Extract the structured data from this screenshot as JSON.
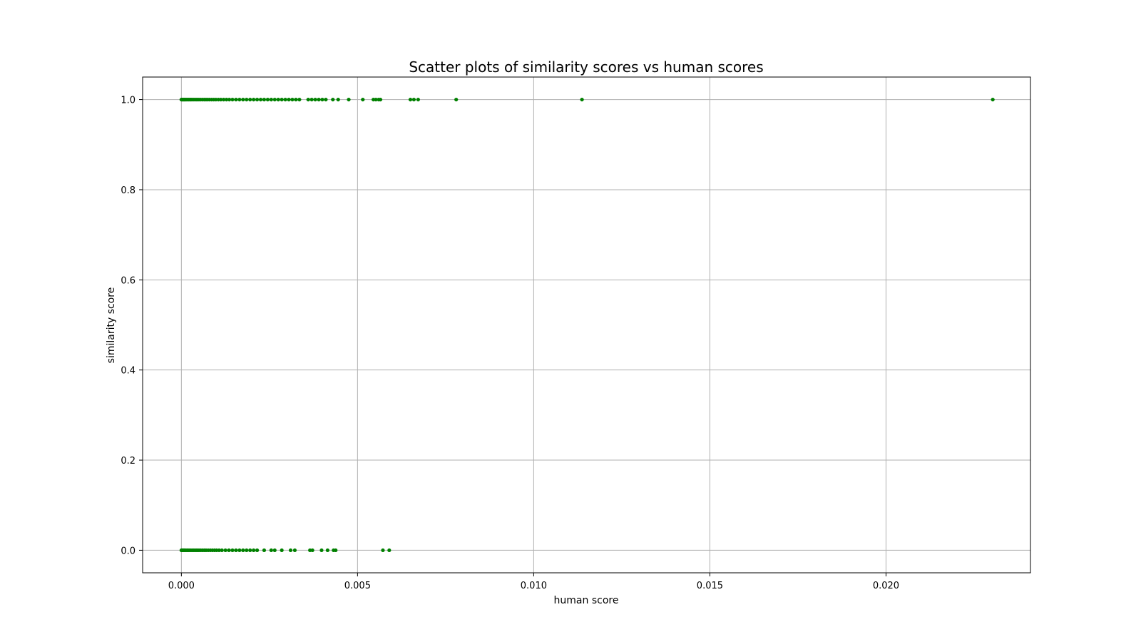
{
  "chart_data": {
    "type": "scatter",
    "title": "Scatter plots of similarity scores vs human scores",
    "xlabel": "human score",
    "ylabel": "similarity score",
    "xlim": [
      -0.0011,
      0.0241
    ],
    "ylim": [
      -0.05,
      1.05
    ],
    "xticks": [
      0.0,
      0.005,
      0.01,
      0.015,
      0.02
    ],
    "xtick_labels": [
      "0.000",
      "0.005",
      "0.010",
      "0.015",
      "0.020"
    ],
    "yticks": [
      0.0,
      0.2,
      0.4,
      0.6,
      0.8,
      1.0
    ],
    "ytick_labels": [
      "0.0",
      "0.2",
      "0.4",
      "0.6",
      "0.8",
      "1.0"
    ],
    "grid": true,
    "marker_color": "#008000",
    "series": [
      {
        "points": [
          [
            0.0,
            1
          ],
          [
            2e-05,
            1
          ],
          [
            4e-05,
            1
          ],
          [
            6e-05,
            1
          ],
          [
            8e-05,
            1
          ],
          [
            0.0001,
            1
          ],
          [
            0.00012,
            1
          ],
          [
            0.00015,
            1
          ],
          [
            0.00018,
            1
          ],
          [
            0.00021,
            1
          ],
          [
            0.00024,
            1
          ],
          [
            0.00027,
            1
          ],
          [
            0.0003,
            1
          ],
          [
            0.00034,
            1
          ],
          [
            0.00038,
            1
          ],
          [
            0.00042,
            1
          ],
          [
            0.00046,
            1
          ],
          [
            0.0005,
            1
          ],
          [
            0.00055,
            1
          ],
          [
            0.0006,
            1
          ],
          [
            0.00065,
            1
          ],
          [
            0.0007,
            1
          ],
          [
            0.00075,
            1
          ],
          [
            0.0008,
            1
          ],
          [
            0.00086,
            1
          ],
          [
            0.00092,
            1
          ],
          [
            0.00098,
            1
          ],
          [
            0.00105,
            1
          ],
          [
            0.00112,
            1
          ],
          [
            0.0012,
            1
          ],
          [
            0.00128,
            1
          ],
          [
            0.00136,
            1
          ],
          [
            0.00145,
            1
          ],
          [
            0.00155,
            1
          ],
          [
            0.00165,
            1
          ],
          [
            0.00175,
            1
          ],
          [
            0.00185,
            1
          ],
          [
            0.00195,
            1
          ],
          [
            0.00205,
            1
          ],
          [
            0.00215,
            1
          ],
          [
            0.00225,
            1
          ],
          [
            0.00235,
            1
          ],
          [
            0.00245,
            1
          ],
          [
            0.00255,
            1
          ],
          [
            0.00265,
            1
          ],
          [
            0.00275,
            1
          ],
          [
            0.00285,
            1
          ],
          [
            0.00295,
            1
          ],
          [
            0.00305,
            1
          ],
          [
            0.00315,
            1
          ],
          [
            0.00325,
            1
          ],
          [
            0.00335,
            1
          ],
          [
            0.0036,
            1
          ],
          [
            0.0037,
            1
          ],
          [
            0.0038,
            1
          ],
          [
            0.0039,
            1
          ],
          [
            0.004,
            1
          ],
          [
            0.0041,
            1
          ],
          [
            0.0043,
            1
          ],
          [
            0.00445,
            1
          ],
          [
            0.00475,
            1
          ],
          [
            0.00515,
            1
          ],
          [
            0.00545,
            1
          ],
          [
            0.00552,
            1
          ],
          [
            0.0056,
            1
          ],
          [
            0.00565,
            1
          ],
          [
            0.0065,
            1
          ],
          [
            0.0066,
            1
          ],
          [
            0.00672,
            1
          ],
          [
            0.0078,
            1
          ],
          [
            0.01137,
            1
          ],
          [
            0.02303,
            1
          ],
          [
            0.0,
            0
          ],
          [
            2e-05,
            0
          ],
          [
            4e-05,
            0
          ],
          [
            6e-05,
            0
          ],
          [
            8e-05,
            0
          ],
          [
            0.0001,
            0
          ],
          [
            0.00013,
            0
          ],
          [
            0.00016,
            0
          ],
          [
            0.00019,
            0
          ],
          [
            0.00022,
            0
          ],
          [
            0.00026,
            0
          ],
          [
            0.0003,
            0
          ],
          [
            0.00034,
            0
          ],
          [
            0.00038,
            0
          ],
          [
            0.00042,
            0
          ],
          [
            0.00046,
            0
          ],
          [
            0.0005,
            0
          ],
          [
            0.00055,
            0
          ],
          [
            0.0006,
            0
          ],
          [
            0.00065,
            0
          ],
          [
            0.0007,
            0
          ],
          [
            0.00076,
            0
          ],
          [
            0.00082,
            0
          ],
          [
            0.00088,
            0
          ],
          [
            0.00094,
            0
          ],
          [
            0.001,
            0
          ],
          [
            0.00107,
            0
          ],
          [
            0.00115,
            0
          ],
          [
            0.00125,
            0
          ],
          [
            0.00135,
            0
          ],
          [
            0.00145,
            0
          ],
          [
            0.00155,
            0
          ],
          [
            0.00165,
            0
          ],
          [
            0.00175,
            0
          ],
          [
            0.00185,
            0
          ],
          [
            0.00195,
            0
          ],
          [
            0.00205,
            0
          ],
          [
            0.00215,
            0
          ],
          [
            0.00235,
            0
          ],
          [
            0.00255,
            0
          ],
          [
            0.00265,
            0
          ],
          [
            0.00285,
            0
          ],
          [
            0.0031,
            0
          ],
          [
            0.00322,
            0
          ],
          [
            0.00365,
            0
          ],
          [
            0.00372,
            0
          ],
          [
            0.00398,
            0
          ],
          [
            0.00415,
            0
          ],
          [
            0.00432,
            0
          ],
          [
            0.00438,
            0
          ],
          [
            0.00572,
            0
          ],
          [
            0.0059,
            0
          ]
        ]
      }
    ]
  }
}
